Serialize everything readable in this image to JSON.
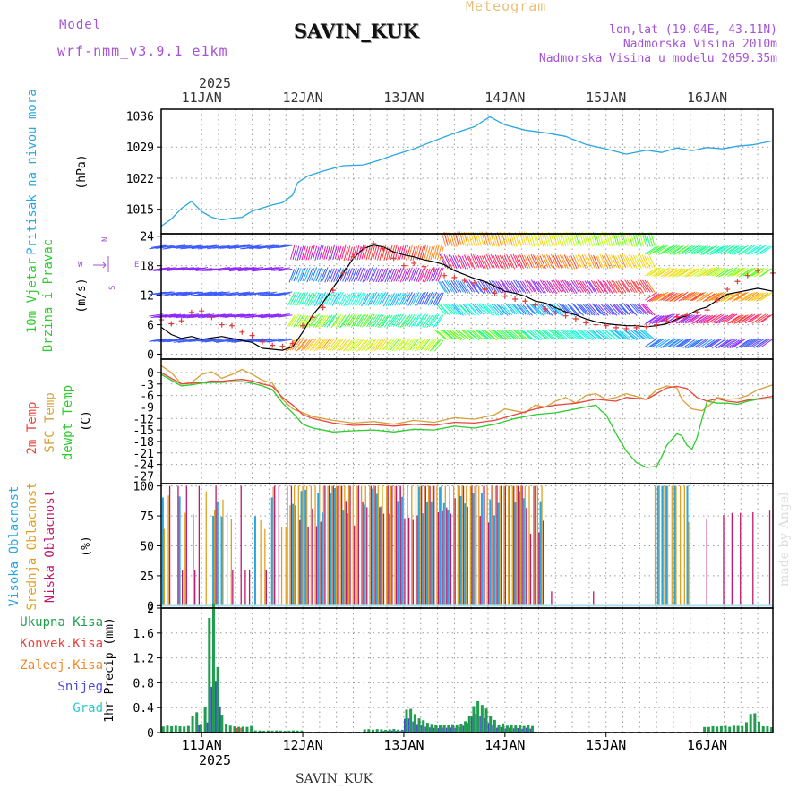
{
  "header": {
    "model_label": "Model",
    "model_name": "wrf-nmm_v3.9.1 e1km",
    "station": "SAVIN_KUK",
    "title": "Meteogram",
    "lonlat": "lon,lat (19.04E, 43.11N)",
    "elevation": "Nadmorska Visina 2010m",
    "model_elevation": "Nadmorska Visina u modelu 2059.35m",
    "footer_station": "SAVIN_KUK",
    "made_by": "made by Angel"
  },
  "colors": {
    "pressure": "#2aa7e0",
    "temp2m": "#e8453c",
    "sfc_temp": "#d8a038",
    "dewpt": "#2ecc2e",
    "high_cloud": "#2aa7e0",
    "mid_cloud": "#e0a020",
    "low_cloud": "#c0186e",
    "total_precip": "#1f9e4d",
    "conv_precip": "#e8453c",
    "frz_precip": "#ef8a2a",
    "snow": "#4a4ad8",
    "hail": "#2ec8c8",
    "wind_obs": "#e23a3a"
  },
  "chart_data": {
    "type": "line",
    "x_axis": {
      "year_label": "2025",
      "day_labels": [
        "11JAN",
        "12JAN",
        "13JAN",
        "14JAN",
        "15JAN",
        "16JAN"
      ],
      "range_days": [
        0.6,
        6.65
      ]
    },
    "pressure": {
      "ylabel": "Pritisak na nivou mora",
      "unit": "(hPa)",
      "ticks": [
        1015,
        1022,
        1029,
        1036
      ],
      "ylim": [
        1009.5,
        1037.5
      ],
      "points": [
        [
          0.6,
          1011.2
        ],
        [
          0.7,
          1012.8
        ],
        [
          0.8,
          1015.2
        ],
        [
          0.9,
          1016.8
        ],
        [
          1.0,
          1014.5
        ],
        [
          1.1,
          1013.2
        ],
        [
          1.2,
          1012.6
        ],
        [
          1.3,
          1013.0
        ],
        [
          1.4,
          1013.2
        ],
        [
          1.5,
          1014.6
        ],
        [
          1.6,
          1015.3
        ],
        [
          1.7,
          1016.0
        ],
        [
          1.8,
          1016.5
        ],
        [
          1.9,
          1018.2
        ],
        [
          1.95,
          1021.0
        ],
        [
          2.05,
          1022.5
        ],
        [
          2.2,
          1023.6
        ],
        [
          2.4,
          1024.8
        ],
        [
          2.6,
          1025.0
        ],
        [
          2.75,
          1026.0
        ],
        [
          2.9,
          1027.2
        ],
        [
          3.1,
          1028.6
        ],
        [
          3.3,
          1030.4
        ],
        [
          3.5,
          1032.1
        ],
        [
          3.7,
          1033.6
        ],
        [
          3.85,
          1035.8
        ],
        [
          4.0,
          1034.0
        ],
        [
          4.2,
          1032.8
        ],
        [
          4.4,
          1032.2
        ],
        [
          4.6,
          1031.4
        ],
        [
          4.8,
          1029.6
        ],
        [
          5.0,
          1028.6
        ],
        [
          5.2,
          1027.4
        ],
        [
          5.4,
          1028.3
        ],
        [
          5.55,
          1027.8
        ],
        [
          5.7,
          1028.8
        ],
        [
          5.85,
          1028.2
        ],
        [
          6.0,
          1028.9
        ],
        [
          6.15,
          1028.6
        ],
        [
          6.3,
          1029.2
        ],
        [
          6.45,
          1029.5
        ],
        [
          6.65,
          1030.4
        ]
      ]
    },
    "wind": {
      "ylabel": "10m Vjetar",
      "ylabel2": "Brzina i Pravac",
      "unit": "(m/s)",
      "compass": [
        "N",
        "W",
        "E",
        "S"
      ],
      "ticks": [
        0,
        6,
        12,
        18,
        24
      ],
      "ylim": [
        -1,
        24.5
      ],
      "levels": [
        3.0,
        8.0,
        12.5,
        17.5,
        22.0
      ],
      "speed_points": [
        [
          0.6,
          5.5
        ],
        [
          0.7,
          4.0
        ],
        [
          0.8,
          3.2
        ],
        [
          0.9,
          3.6
        ],
        [
          1.0,
          3.0
        ],
        [
          1.1,
          3.3
        ],
        [
          1.2,
          3.6
        ],
        [
          1.3,
          3.2
        ],
        [
          1.4,
          2.8
        ],
        [
          1.5,
          2.4
        ],
        [
          1.6,
          1.2
        ],
        [
          1.7,
          1.0
        ],
        [
          1.8,
          0.8
        ],
        [
          1.9,
          1.5
        ],
        [
          2.0,
          4.5
        ],
        [
          2.1,
          8.0
        ],
        [
          2.2,
          10.5
        ],
        [
          2.3,
          13.5
        ],
        [
          2.4,
          16.5
        ],
        [
          2.5,
          19.5
        ],
        [
          2.6,
          21.5
        ],
        [
          2.7,
          22.2
        ],
        [
          2.8,
          21.8
        ],
        [
          2.9,
          20.8
        ],
        [
          3.0,
          20.2
        ],
        [
          3.1,
          19.8
        ],
        [
          3.2,
          19.2
        ],
        [
          3.3,
          18.8
        ],
        [
          3.4,
          18.2
        ],
        [
          3.5,
          17.0
        ],
        [
          3.6,
          16.2
        ],
        [
          3.7,
          15.4
        ],
        [
          3.8,
          14.8
        ],
        [
          3.9,
          13.8
        ],
        [
          4.0,
          12.8
        ],
        [
          4.1,
          12.4
        ],
        [
          4.2,
          11.8
        ],
        [
          4.3,
          10.8
        ],
        [
          4.4,
          10.4
        ],
        [
          4.5,
          9.5
        ],
        [
          4.6,
          8.6
        ],
        [
          4.7,
          8.0
        ],
        [
          4.8,
          7.2
        ],
        [
          4.9,
          6.6
        ],
        [
          5.0,
          6.2
        ],
        [
          5.1,
          6.0
        ],
        [
          5.2,
          5.8
        ],
        [
          5.3,
          5.8
        ],
        [
          5.4,
          5.6
        ],
        [
          5.5,
          5.8
        ],
        [
          5.6,
          6.2
        ],
        [
          5.7,
          7.2
        ],
        [
          5.8,
          7.8
        ],
        [
          5.9,
          9.0
        ],
        [
          6.0,
          9.6
        ],
        [
          6.1,
          11.0
        ],
        [
          6.2,
          12.2
        ],
        [
          6.3,
          12.6
        ],
        [
          6.4,
          13.0
        ],
        [
          6.5,
          13.4
        ],
        [
          6.65,
          12.8
        ]
      ],
      "obs_points": [
        [
          0.6,
          7.0
        ],
        [
          0.7,
          6.2
        ],
        [
          0.8,
          6.8
        ],
        [
          0.9,
          8.5
        ],
        [
          1.0,
          8.8
        ],
        [
          1.1,
          7.5
        ],
        [
          1.2,
          6.0
        ],
        [
          1.3,
          5.8
        ],
        [
          1.4,
          4.5
        ],
        [
          1.5,
          3.8
        ],
        [
          1.6,
          2.5
        ],
        [
          1.7,
          1.8
        ],
        [
          1.8,
          1.6
        ],
        [
          1.9,
          2.2
        ],
        [
          2.0,
          5.8
        ],
        [
          2.1,
          7.5
        ],
        [
          2.2,
          9.5
        ],
        [
          2.3,
          13.0
        ],
        [
          2.4,
          16.5
        ],
        [
          2.5,
          19.8
        ],
        [
          2.6,
          21.6
        ],
        [
          2.7,
          22.5
        ],
        [
          2.8,
          21.5
        ],
        [
          2.9,
          19.5
        ],
        [
          3.0,
          18.0
        ],
        [
          3.1,
          18.5
        ],
        [
          3.2,
          17.8
        ],
        [
          3.3,
          17.2
        ],
        [
          3.4,
          16.0
        ],
        [
          3.5,
          15.6
        ],
        [
          3.6,
          15.0
        ],
        [
          3.7,
          14.5
        ],
        [
          3.8,
          13.2
        ],
        [
          3.9,
          12.4
        ],
        [
          4.0,
          11.8
        ],
        [
          4.1,
          11.2
        ],
        [
          4.2,
          10.8
        ],
        [
          4.3,
          10.0
        ],
        [
          4.4,
          9.2
        ],
        [
          4.5,
          8.4
        ],
        [
          4.6,
          7.8
        ],
        [
          4.7,
          7.2
        ],
        [
          4.8,
          6.4
        ],
        [
          4.9,
          6.0
        ],
        [
          5.0,
          5.8
        ],
        [
          5.1,
          5.4
        ],
        [
          5.2,
          5.2
        ],
        [
          5.3,
          5.4
        ],
        [
          5.4,
          5.6
        ],
        [
          5.5,
          6.0
        ],
        [
          5.6,
          6.8
        ],
        [
          5.7,
          7.6
        ],
        [
          5.8,
          8.0
        ],
        [
          5.9,
          8.6
        ],
        [
          6.0,
          9.0
        ],
        [
          6.1,
          11.0
        ],
        [
          6.2,
          13.2
        ],
        [
          6.3,
          14.8
        ],
        [
          6.4,
          16.0
        ],
        [
          6.5,
          17.0
        ],
        [
          6.65,
          16.5
        ]
      ]
    },
    "temperature": {
      "ylabels": [
        "2m Temp",
        "SFC Temp",
        "dewpt Temp"
      ],
      "unit": "(C)",
      "ticks": [
        0,
        -3,
        -6,
        -9,
        -12,
        -15,
        -18,
        -21,
        -24,
        -27
      ],
      "ylim": [
        -29,
        3.5
      ],
      "temp2m": [
        [
          0.6,
          0.0
        ],
        [
          0.7,
          -1.5
        ],
        [
          0.8,
          -3.0
        ],
        [
          0.9,
          -2.8
        ],
        [
          1.0,
          -2.6
        ],
        [
          1.1,
          -2.2
        ],
        [
          1.2,
          -2.3
        ],
        [
          1.3,
          -2.0
        ],
        [
          1.4,
          -1.8
        ],
        [
          1.5,
          -2.2
        ],
        [
          1.6,
          -3.0
        ],
        [
          1.7,
          -3.6
        ],
        [
          1.8,
          -6.5
        ],
        [
          1.9,
          -8.5
        ],
        [
          2.0,
          -11.0
        ],
        [
          2.1,
          -12.0
        ],
        [
          2.3,
          -13.2
        ],
        [
          2.5,
          -13.8
        ],
        [
          2.7,
          -13.6
        ],
        [
          2.9,
          -14.0
        ],
        [
          3.1,
          -13.5
        ],
        [
          3.3,
          -13.8
        ],
        [
          3.5,
          -13.0
        ],
        [
          3.7,
          -13.2
        ],
        [
          3.9,
          -12.5
        ],
        [
          4.1,
          -11.0
        ],
        [
          4.3,
          -9.5
        ],
        [
          4.5,
          -8.5
        ],
        [
          4.7,
          -8.0
        ],
        [
          4.9,
          -7.0
        ],
        [
          5.1,
          -7.5
        ],
        [
          5.2,
          -6.5
        ],
        [
          5.4,
          -7.0
        ],
        [
          5.5,
          -5.5
        ],
        [
          5.6,
          -4.0
        ],
        [
          5.7,
          -3.6
        ],
        [
          5.8,
          -4.2
        ],
        [
          5.9,
          -6.5
        ],
        [
          6.0,
          -7.5
        ],
        [
          6.1,
          -6.8
        ],
        [
          6.2,
          -7.5
        ],
        [
          6.3,
          -7.8
        ],
        [
          6.4,
          -7.2
        ],
        [
          6.5,
          -6.8
        ],
        [
          6.65,
          -6.2
        ]
      ],
      "sfc_temp": [
        [
          0.6,
          1.8
        ],
        [
          0.7,
          0.0
        ],
        [
          0.8,
          -3.0
        ],
        [
          0.9,
          -2.6
        ],
        [
          1.0,
          -0.5
        ],
        [
          1.1,
          0.2
        ],
        [
          1.2,
          -1.5
        ],
        [
          1.3,
          -0.5
        ],
        [
          1.4,
          0.8
        ],
        [
          1.5,
          -0.5
        ],
        [
          1.6,
          -2.0
        ],
        [
          1.7,
          -2.8
        ],
        [
          1.8,
          -7.0
        ],
        [
          1.9,
          -9.5
        ],
        [
          2.0,
          -10.5
        ],
        [
          2.1,
          -11.5
        ],
        [
          2.3,
          -12.5
        ],
        [
          2.5,
          -13.2
        ],
        [
          2.7,
          -12.8
        ],
        [
          2.9,
          -13.5
        ],
        [
          3.1,
          -12.5
        ],
        [
          3.3,
          -13.0
        ],
        [
          3.5,
          -11.8
        ],
        [
          3.7,
          -12.2
        ],
        [
          3.9,
          -11.0
        ],
        [
          4.0,
          -9.5
        ],
        [
          4.2,
          -10.5
        ],
        [
          4.3,
          -8.5
        ],
        [
          4.4,
          -9.0
        ],
        [
          4.5,
          -7.5
        ],
        [
          4.6,
          -6.5
        ],
        [
          4.7,
          -8.0
        ],
        [
          4.8,
          -6.0
        ],
        [
          4.9,
          -5.5
        ],
        [
          5.0,
          -7.0
        ],
        [
          5.1,
          -6.5
        ],
        [
          5.2,
          -5.5
        ],
        [
          5.4,
          -7.0
        ],
        [
          5.5,
          -4.5
        ],
        [
          5.6,
          -3.5
        ],
        [
          5.7,
          -4.0
        ],
        [
          5.75,
          -7.0
        ],
        [
          5.85,
          -9.5
        ],
        [
          5.95,
          -10.0
        ],
        [
          6.05,
          -8.0
        ],
        [
          6.1,
          -6.5
        ],
        [
          6.2,
          -7.0
        ],
        [
          6.3,
          -6.8
        ],
        [
          6.4,
          -6.0
        ],
        [
          6.5,
          -4.5
        ],
        [
          6.65,
          -3.2
        ]
      ],
      "dewpt": [
        [
          0.6,
          -0.5
        ],
        [
          0.7,
          -2.0
        ],
        [
          0.8,
          -3.5
        ],
        [
          0.9,
          -3.2
        ],
        [
          1.0,
          -2.8
        ],
        [
          1.1,
          -2.6
        ],
        [
          1.2,
          -2.6
        ],
        [
          1.3,
          -2.4
        ],
        [
          1.4,
          -2.4
        ],
        [
          1.5,
          -2.8
        ],
        [
          1.6,
          -3.5
        ],
        [
          1.7,
          -4.5
        ],
        [
          1.8,
          -8.0
        ],
        [
          1.9,
          -10.5
        ],
        [
          2.0,
          -13.5
        ],
        [
          2.1,
          -14.5
        ],
        [
          2.3,
          -15.5
        ],
        [
          2.5,
          -15.2
        ],
        [
          2.7,
          -15.0
        ],
        [
          2.9,
          -15.5
        ],
        [
          3.1,
          -14.8
        ],
        [
          3.3,
          -15.0
        ],
        [
          3.5,
          -14.0
        ],
        [
          3.7,
          -14.5
        ],
        [
          3.9,
          -13.5
        ],
        [
          4.1,
          -12.0
        ],
        [
          4.3,
          -11.0
        ],
        [
          4.5,
          -10.5
        ],
        [
          4.7,
          -9.5
        ],
        [
          4.9,
          -8.5
        ],
        [
          4.95,
          -10.0
        ],
        [
          5.0,
          -11.0
        ],
        [
          5.05,
          -13.5
        ],
        [
          5.1,
          -16.0
        ],
        [
          5.2,
          -20.5
        ],
        [
          5.3,
          -23.5
        ],
        [
          5.4,
          -24.8
        ],
        [
          5.5,
          -24.5
        ],
        [
          5.55,
          -22.0
        ],
        [
          5.6,
          -19.0
        ],
        [
          5.65,
          -17.5
        ],
        [
          5.7,
          -16.0
        ],
        [
          5.75,
          -16.5
        ],
        [
          5.8,
          -19.0
        ],
        [
          5.85,
          -20.0
        ],
        [
          5.9,
          -17.0
        ],
        [
          5.95,
          -12.0
        ],
        [
          6.0,
          -7.5
        ],
        [
          6.1,
          -8.0
        ],
        [
          6.2,
          -8.0
        ],
        [
          6.3,
          -8.3
        ],
        [
          6.4,
          -7.5
        ],
        [
          6.5,
          -7.0
        ],
        [
          6.65,
          -6.8
        ]
      ]
    },
    "clouds": {
      "ylabels": [
        "Visoka Oblacnost",
        "Srednja Oblacnost",
        "Niska Oblacnost"
      ],
      "unit": "(%)",
      "ticks": [
        0,
        25,
        50,
        75,
        100
      ],
      "ylim": [
        -2,
        102
      ]
    },
    "precip": {
      "labels": [
        "Ukupna Kisa",
        "Konvek.Kisa",
        "Zaledj.Kisa",
        "Snijeg",
        "Grad"
      ],
      "ylabel": "1hr Precip (mm)",
      "ticks": [
        0,
        0.4,
        0.8,
        1.2,
        1.6,
        2
      ],
      "ylim": [
        0,
        2.0
      ]
    }
  }
}
